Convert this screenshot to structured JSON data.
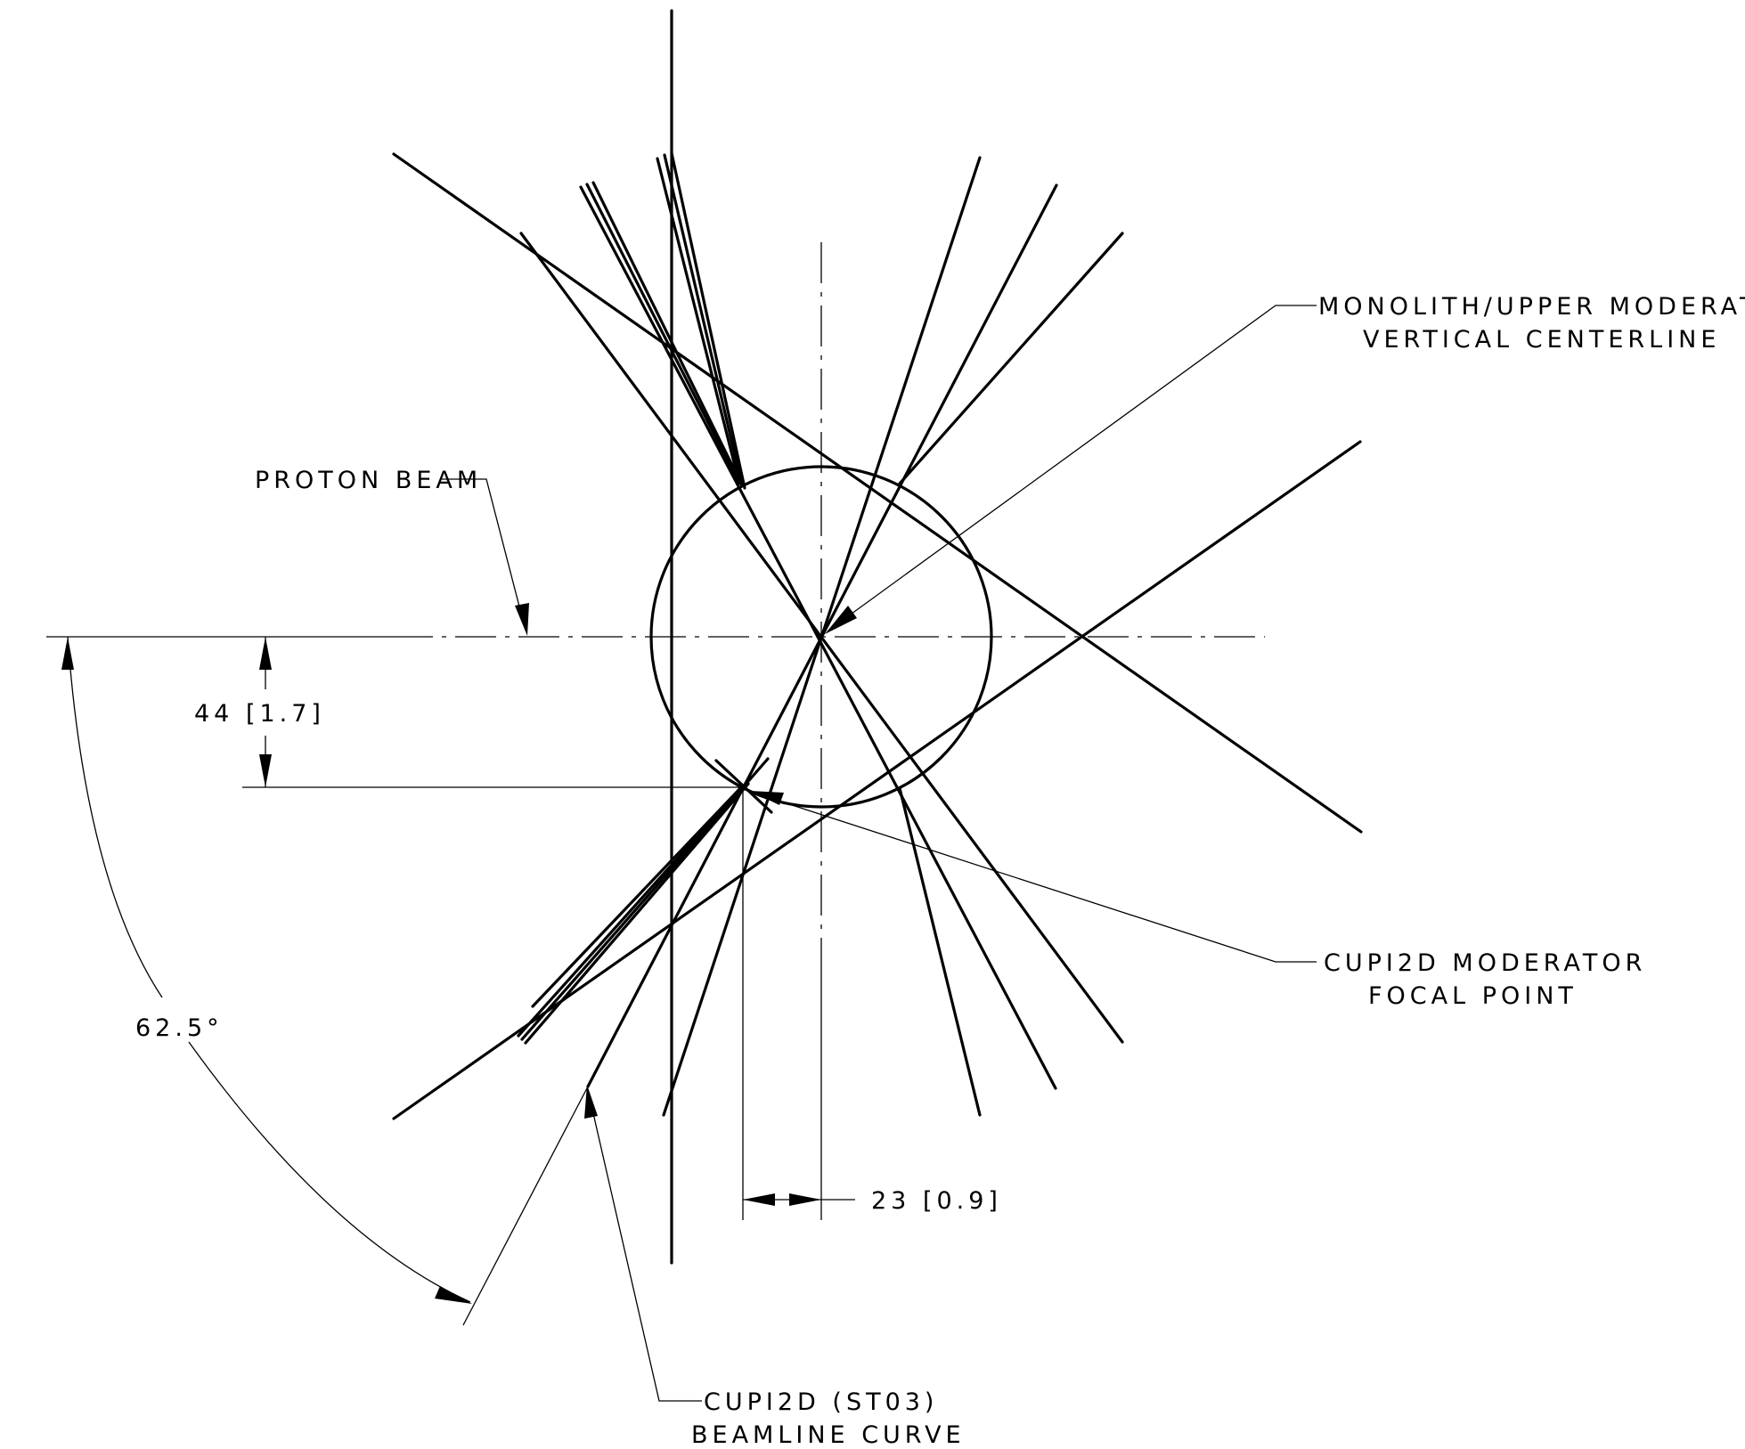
{
  "labels": {
    "monolith_line1": "MONOLITH/UPPER MODERATOR",
    "monolith_line2": "VERTICAL CENTERLINE",
    "proton_beam": "PROTON BEAM",
    "dim_vertical": "44 [1.7]",
    "dim_horizontal": "23 [0.9]",
    "angle": "62.5°",
    "focal_line1": "CUPI2D MODERATOR",
    "focal_line2": "FOCAL POINT",
    "curve_line1": "CUPI2D (ST03)",
    "curve_line2": "BEAMLINE CURVE"
  },
  "colors": {
    "line": "#000000",
    "background": "#ffffff"
  }
}
